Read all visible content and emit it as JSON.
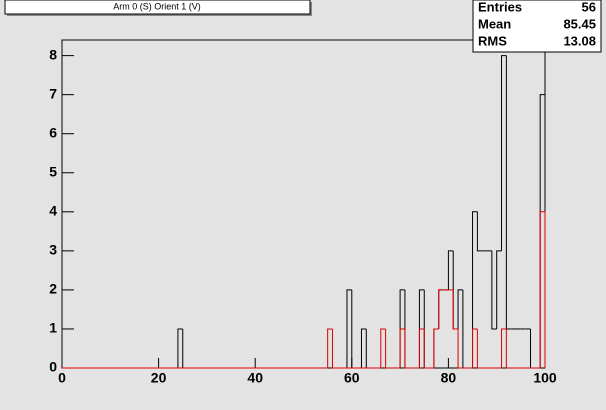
{
  "chart_data": {
    "type": "histogram",
    "title": "Arm 0 (S) Orient 1 (V)",
    "bins": [
      0,
      1,
      2,
      3,
      4,
      5,
      6,
      7,
      8,
      9,
      10,
      11,
      12,
      13,
      14,
      15,
      16,
      17,
      18,
      19,
      20,
      21,
      22,
      23,
      24,
      25,
      26,
      27,
      28,
      29,
      30,
      31,
      32,
      33,
      34,
      35,
      36,
      37,
      38,
      39,
      40,
      41,
      42,
      43,
      44,
      45,
      46,
      47,
      48,
      49,
      50,
      51,
      52,
      53,
      54,
      55,
      56,
      57,
      58,
      59,
      60,
      61,
      62,
      63,
      64,
      65,
      66,
      67,
      68,
      69,
      70,
      71,
      72,
      73,
      74,
      75,
      76,
      77,
      78,
      79,
      80,
      81,
      82,
      83,
      84,
      85,
      86,
      87,
      88,
      89,
      90,
      91,
      92,
      93,
      94,
      95,
      96,
      97,
      98,
      99,
      100
    ],
    "series": [
      {
        "color": "#000000",
        "values": [
          0,
          0,
          0,
          0,
          0,
          0,
          0,
          0,
          0,
          0,
          0,
          0,
          0,
          0,
          0,
          0,
          0,
          0,
          0,
          0,
          0,
          0,
          0,
          0,
          1,
          0,
          0,
          0,
          0,
          0,
          0,
          0,
          0,
          0,
          0,
          0,
          0,
          0,
          0,
          0,
          0,
          0,
          0,
          0,
          0,
          0,
          0,
          0,
          0,
          0,
          0,
          0,
          0,
          0,
          0,
          0,
          0,
          0,
          0,
          2,
          0,
          0,
          1,
          0,
          0,
          0,
          0,
          0,
          0,
          0,
          2,
          0,
          0,
          0,
          2,
          0,
          0,
          1,
          2,
          2,
          3,
          1,
          2,
          0,
          0,
          4,
          3,
          3,
          3,
          1,
          3,
          8,
          1,
          1,
          1,
          1,
          1,
          0,
          0,
          7
        ]
      },
      {
        "color": "#e00000",
        "values": [
          0,
          0,
          0,
          0,
          0,
          0,
          0,
          0,
          0,
          0,
          0,
          0,
          0,
          0,
          0,
          0,
          0,
          0,
          0,
          0,
          0,
          0,
          0,
          0,
          0,
          0,
          0,
          0,
          0,
          0,
          0,
          0,
          0,
          0,
          0,
          0,
          0,
          0,
          0,
          0,
          0,
          0,
          0,
          0,
          0,
          0,
          0,
          0,
          0,
          0,
          0,
          0,
          0,
          0,
          0,
          1,
          0,
          0,
          0,
          0,
          0,
          0,
          0,
          0,
          0,
          0,
          1,
          0,
          0,
          0,
          1,
          0,
          0,
          0,
          1,
          0,
          0,
          1,
          2,
          2,
          2,
          1,
          0,
          0,
          0,
          1,
          0,
          0,
          0,
          0,
          0,
          1,
          0,
          0,
          0,
          0,
          0,
          0,
          0,
          4
        ]
      }
    ],
    "xlim": [
      0,
      100
    ],
    "xticks": [
      0,
      20,
      40,
      60,
      80,
      100
    ],
    "ylim": [
      0,
      8.4
    ],
    "yticks": [
      0,
      1,
      2,
      3,
      4,
      5,
      6,
      7,
      8
    ],
    "stats": [
      {
        "label": "Entries",
        "value": "56"
      },
      {
        "label": "Mean",
        "value": "85.45"
      },
      {
        "label": "RMS",
        "value": "13.08"
      }
    ]
  }
}
